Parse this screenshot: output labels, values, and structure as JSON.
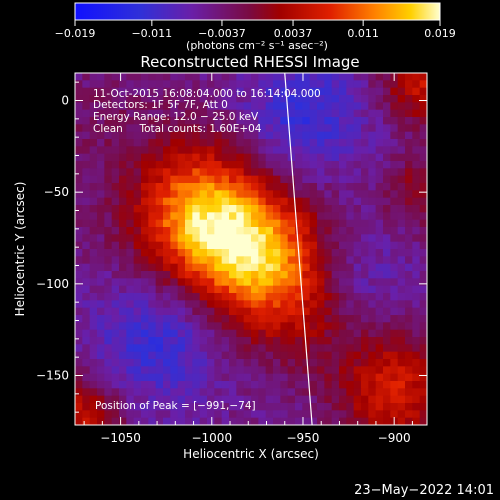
{
  "chart_data": {
    "type": "heatmap",
    "title": "Reconstructed RHESSI Image",
    "xlabel": "Heliocentric X (arcsec)",
    "ylabel": "Heliocentric Y (arcsec)",
    "xlim": [
      -1075,
      -882
    ],
    "ylim": [
      -177,
      15
    ],
    "x_ticks": [
      -1050,
      -1000,
      -950,
      -900
    ],
    "x_tick_labels": [
      "−1050",
      "−1000",
      "−950",
      "−900"
    ],
    "y_ticks": [
      0,
      -50,
      -100,
      -150
    ],
    "y_tick_labels": [
      "0",
      "−50",
      "−100",
      "−150"
    ],
    "colorbar": {
      "range": [
        -0.019,
        0.019
      ],
      "ticks": [
        -0.019,
        -0.011,
        -0.0037,
        0.0037,
        0.011,
        0.019
      ],
      "tick_labels": [
        "−0.019",
        "−0.011",
        "−0.0037",
        "0.0037",
        "0.011",
        "0.019"
      ],
      "units": "(photons cm⁻² s⁻¹ asec⁻²)"
    },
    "annotations": {
      "time": "11-Oct-2015 16:08:04.000 to 16:14:04.000",
      "detectors": "Detectors: 1F 5F 7F, Att 0",
      "energy": "Energy Range: 12.0 − 25.0 keV",
      "clean": "Clean     Total counts: 1.60E+04",
      "peak": "Position of Peak = [−991,−74]"
    },
    "peak": {
      "x": -991,
      "y": -74,
      "value": 0.019
    },
    "limb_line": {
      "x_top": -960,
      "x_bottom": -945
    },
    "footer_date": "23−May−2022 14:01"
  }
}
